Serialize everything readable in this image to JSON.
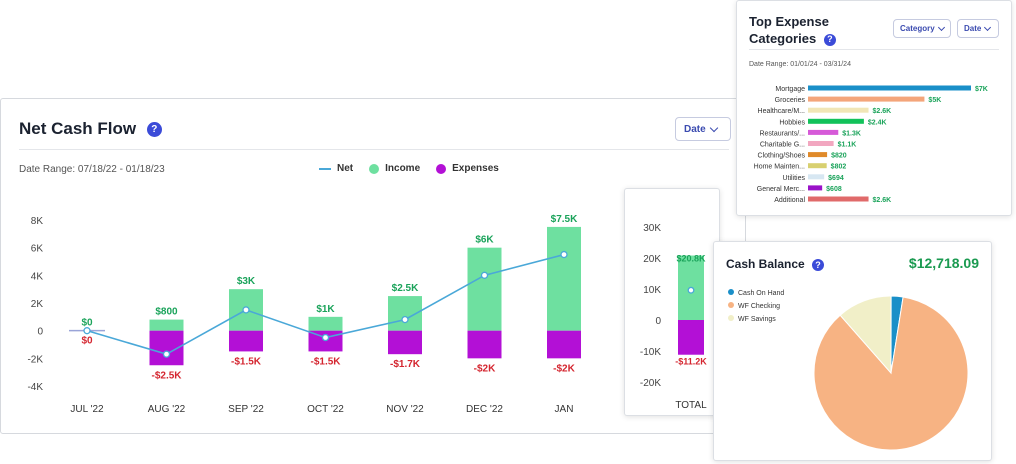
{
  "net_cash_flow": {
    "title": "Net Cash Flow",
    "help": "?",
    "date_button": "Date",
    "date_range": "Date Range: 07/18/22 - 01/18/23",
    "legend": {
      "net": "Net",
      "income": "Income",
      "expenses": "Expenses"
    }
  },
  "top_expense": {
    "title_line1": "Top Expense",
    "title_line2": "Categories",
    "help": "?",
    "category_button": "Category",
    "date_button": "Date",
    "date_range": "Date Range: 01/01/24 - 03/31/24"
  },
  "cash_balance": {
    "title": "Cash Balance",
    "help": "?",
    "total": "$12,718.09"
  },
  "colors": {
    "income": "#6ee0a0",
    "expenses": "#b310d6",
    "net": "#4aa8d8",
    "positive_label": "#1aa35a",
    "negative_label": "#d4252f",
    "title_total": "#1a9a50"
  },
  "chart_data": [
    {
      "type": "bar",
      "title": "Net Cash Flow",
      "categories": [
        "JUL '22",
        "AUG '22",
        "SEP '22",
        "OCT '22",
        "NOV '22",
        "DEC '22",
        "JAN"
      ],
      "series": [
        {
          "name": "Income",
          "values": [
            0,
            800,
            3000,
            1000,
            2500,
            6000,
            7500
          ],
          "labels": [
            "$0",
            "$800",
            "$3K",
            "$1K",
            "$2.5K",
            "$6K",
            "$7.5K"
          ]
        },
        {
          "name": "Expenses",
          "values": [
            0,
            -2500,
            -1500,
            -1500,
            -1700,
            -2000,
            -2000
          ],
          "labels": [
            "$0",
            "-$2.5K",
            "-$1.5K",
            "-$1.5K",
            "-$1.7K",
            "-$2K",
            "-$2K"
          ]
        },
        {
          "name": "Net",
          "type": "line",
          "values": [
            0,
            -1700,
            1500,
            -500,
            800,
            4000,
            5500
          ]
        }
      ],
      "y_ticks": [
        8000,
        6000,
        4000,
        2000,
        0,
        -2000,
        -4000
      ],
      "y_tick_labels": [
        "8K",
        "6K",
        "4K",
        "2K",
        "0",
        "-2K",
        "-4K"
      ],
      "ylim": [
        -4000,
        8000
      ],
      "legend_position": "top-center",
      "grid": false
    },
    {
      "type": "bar",
      "categories": [
        "TOTAL"
      ],
      "series": [
        {
          "name": "Income",
          "values": [
            20800
          ],
          "labels": [
            "$20.8K"
          ]
        },
        {
          "name": "Expenses",
          "values": [
            -11200
          ],
          "labels": [
            "-$11.2K"
          ]
        },
        {
          "name": "Net",
          "type": "point",
          "values": [
            9600
          ]
        }
      ],
      "y_ticks": [
        30000,
        20000,
        10000,
        0,
        -10000,
        -20000
      ],
      "y_tick_labels": [
        "30K",
        "20K",
        "10K",
        "0",
        "-10K",
        "-20K"
      ],
      "ylim": [
        -20000,
        30000
      ]
    },
    {
      "type": "bar",
      "orientation": "horizontal",
      "title": "Top Expense Categories",
      "categories": [
        "Mortgage",
        "Groceries",
        "Healthcare/M...",
        "Hobbies",
        "Restaurants/...",
        "Charitable G...",
        "Clothing/Shoes",
        "Home Mainten...",
        "Utilities",
        "General Merc...",
        "Additional"
      ],
      "values": [
        7000,
        5000,
        2600,
        2400,
        1300,
        1100,
        820,
        802,
        694,
        608,
        2600
      ],
      "labels": [
        "$7K",
        "$5K",
        "$2.6K",
        "$2.4K",
        "$1.3K",
        "$1.1K",
        "$820",
        "$802",
        "$694",
        "$608",
        "$2.6K"
      ],
      "colors": [
        "#1a8fc8",
        "#f4a57a",
        "#f1e6b6",
        "#12c25a",
        "#d65ad8",
        "#f2a7c0",
        "#e08a2a",
        "#d8d070",
        "#d7e7f2",
        "#9a12c8",
        "#e06a6a"
      ]
    },
    {
      "type": "pie",
      "title": "Cash Balance",
      "labels": [
        "Cash On Hand",
        "WF Checking",
        "WF Savings"
      ],
      "values": [
        2.5,
        86,
        11.5
      ],
      "colors": [
        "#1a8fc8",
        "#f7b383",
        "#f1efc8"
      ],
      "legend_position": "top-left"
    }
  ]
}
